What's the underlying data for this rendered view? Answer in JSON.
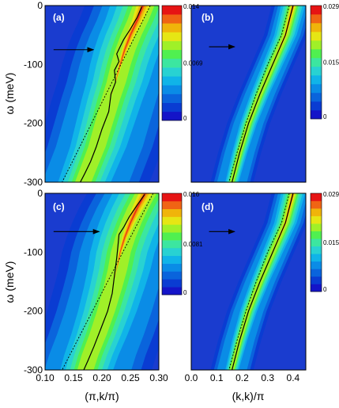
{
  "colors": {
    "colormap": [
      "#1414c8",
      "#0a3cd2",
      "#0a64dc",
      "#0a8ce6",
      "#10b4e8",
      "#28d2d2",
      "#3ce6a0",
      "#50f050",
      "#a0f028",
      "#e6e614",
      "#f0b40a",
      "#f06414",
      "#e61414"
    ],
    "background": "#1a3ccf",
    "solid_line": "#000000",
    "dashed_line": "#000000",
    "arrow": "#000000",
    "frame": "#000000"
  },
  "axes": {
    "ylabel": "ω (meV)",
    "xlabel_left": "(π,k/π)",
    "xlabel_right": "(k,k)/π",
    "y_ticks": [
      "0",
      "-100",
      "-200",
      "-300"
    ],
    "x_ticks_left": [
      "0.10",
      "0.15",
      "0.20",
      "0.25",
      "0.30"
    ],
    "x_ticks_right": [
      "0.0",
      "0.1",
      "0.2",
      "0.3",
      "0.4"
    ]
  },
  "chart_data": [
    {
      "type": "heatmap",
      "panel": "(a)",
      "xlim": [
        0.1,
        0.3
      ],
      "ylim": [
        -300,
        0
      ],
      "colorbar": {
        "ticks": [
          "0.014",
          "0.0069",
          "0"
        ],
        "range": [
          0,
          0.014
        ]
      },
      "arrow": {
        "x": [
          0.115,
          0.185
        ],
        "y": -75
      },
      "solid_curve": [
        [
          0.27,
          -2
        ],
        [
          0.262,
          -20
        ],
        [
          0.25,
          -40
        ],
        [
          0.238,
          -58
        ],
        [
          0.232,
          -70
        ],
        [
          0.226,
          -82
        ],
        [
          0.23,
          -95
        ],
        [
          0.222,
          -110
        ],
        [
          0.224,
          -130
        ],
        [
          0.216,
          -150
        ],
        [
          0.212,
          -180
        ],
        [
          0.2,
          -210
        ],
        [
          0.19,
          -240
        ],
        [
          0.18,
          -265
        ],
        [
          0.17,
          -285
        ],
        [
          0.162,
          -300
        ]
      ],
      "dashed_curve": [
        [
          0.285,
          0
        ],
        [
          0.13,
          -300
        ]
      ],
      "ridge": [
        [
          0.272,
          0
        ],
        [
          0.262,
          -25
        ],
        [
          0.25,
          -50
        ],
        [
          0.24,
          -75
        ],
        [
          0.232,
          -100
        ],
        [
          0.224,
          -130
        ],
        [
          0.214,
          -160
        ],
        [
          0.202,
          -200
        ],
        [
          0.19,
          -240
        ],
        [
          0.176,
          -275
        ],
        [
          0.166,
          -300
        ]
      ]
    },
    {
      "type": "heatmap",
      "panel": "(b)",
      "xlim": [
        0.0,
        0.45
      ],
      "ylim": [
        -300,
        0
      ],
      "colorbar": {
        "ticks": [
          "0.029",
          "0.015",
          "0"
        ],
        "range": [
          0,
          0.029
        ]
      },
      "arrow": {
        "x": [
          0.07,
          0.17
        ],
        "y": -70
      },
      "solid_curve": [
        [
          0.4,
          0
        ],
        [
          0.37,
          -50
        ],
        [
          0.32,
          -100
        ],
        [
          0.27,
          -150
        ],
        [
          0.225,
          -200
        ],
        [
          0.19,
          -250
        ],
        [
          0.16,
          -300
        ]
      ],
      "dashed_curve": [
        [
          0.385,
          0
        ],
        [
          0.355,
          -50
        ],
        [
          0.3,
          -100
        ],
        [
          0.255,
          -150
        ],
        [
          0.215,
          -200
        ],
        [
          0.18,
          -250
        ],
        [
          0.148,
          -300
        ]
      ],
      "ridge": [
        [
          0.4,
          0
        ],
        [
          0.37,
          -50
        ],
        [
          0.32,
          -100
        ],
        [
          0.27,
          -150
        ],
        [
          0.225,
          -200
        ],
        [
          0.19,
          -250
        ],
        [
          0.16,
          -300
        ]
      ]
    },
    {
      "type": "heatmap",
      "panel": "(c)",
      "xlim": [
        0.1,
        0.3
      ],
      "ylim": [
        -300,
        0
      ],
      "colorbar": {
        "ticks": [
          "0.016",
          "0.0081",
          "0"
        ],
        "range": [
          0,
          0.016
        ]
      },
      "arrow": {
        "x": [
          0.115,
          0.195
        ],
        "y": -65
      },
      "solid_curve": [
        [
          0.275,
          -2
        ],
        [
          0.262,
          -20
        ],
        [
          0.248,
          -40
        ],
        [
          0.238,
          -58
        ],
        [
          0.23,
          -70
        ],
        [
          0.228,
          -90
        ],
        [
          0.226,
          -110
        ],
        [
          0.222,
          -140
        ],
        [
          0.218,
          -170
        ],
        [
          0.21,
          -200
        ],
        [
          0.198,
          -230
        ],
        [
          0.186,
          -260
        ],
        [
          0.175,
          -285
        ],
        [
          0.168,
          -300
        ]
      ],
      "dashed_curve": [
        [
          0.29,
          0
        ],
        [
          0.13,
          -300
        ]
      ],
      "ridge": [
        [
          0.276,
          0
        ],
        [
          0.262,
          -25
        ],
        [
          0.25,
          -50
        ],
        [
          0.24,
          -75
        ],
        [
          0.232,
          -100
        ],
        [
          0.226,
          -130
        ],
        [
          0.218,
          -160
        ],
        [
          0.206,
          -200
        ],
        [
          0.192,
          -240
        ],
        [
          0.178,
          -275
        ],
        [
          0.17,
          -300
        ]
      ]
    },
    {
      "type": "heatmap",
      "panel": "(d)",
      "xlim": [
        0.0,
        0.45
      ],
      "ylim": [
        -300,
        0
      ],
      "colorbar": {
        "ticks": [
          "0.029",
          "0.015",
          "0"
        ],
        "range": [
          0,
          0.029
        ]
      },
      "arrow": {
        "x": [
          0.07,
          0.17
        ],
        "y": -65
      },
      "solid_curve": [
        [
          0.4,
          0
        ],
        [
          0.37,
          -50
        ],
        [
          0.32,
          -100
        ],
        [
          0.27,
          -150
        ],
        [
          0.225,
          -200
        ],
        [
          0.19,
          -250
        ],
        [
          0.16,
          -300
        ]
      ],
      "dashed_curve": [
        [
          0.385,
          0
        ],
        [
          0.355,
          -50
        ],
        [
          0.3,
          -100
        ],
        [
          0.255,
          -150
        ],
        [
          0.215,
          -200
        ],
        [
          0.18,
          -250
        ],
        [
          0.148,
          -300
        ]
      ],
      "ridge": [
        [
          0.4,
          0
        ],
        [
          0.37,
          -50
        ],
        [
          0.32,
          -100
        ],
        [
          0.27,
          -150
        ],
        [
          0.225,
          -200
        ],
        [
          0.19,
          -250
        ],
        [
          0.16,
          -300
        ]
      ]
    }
  ]
}
